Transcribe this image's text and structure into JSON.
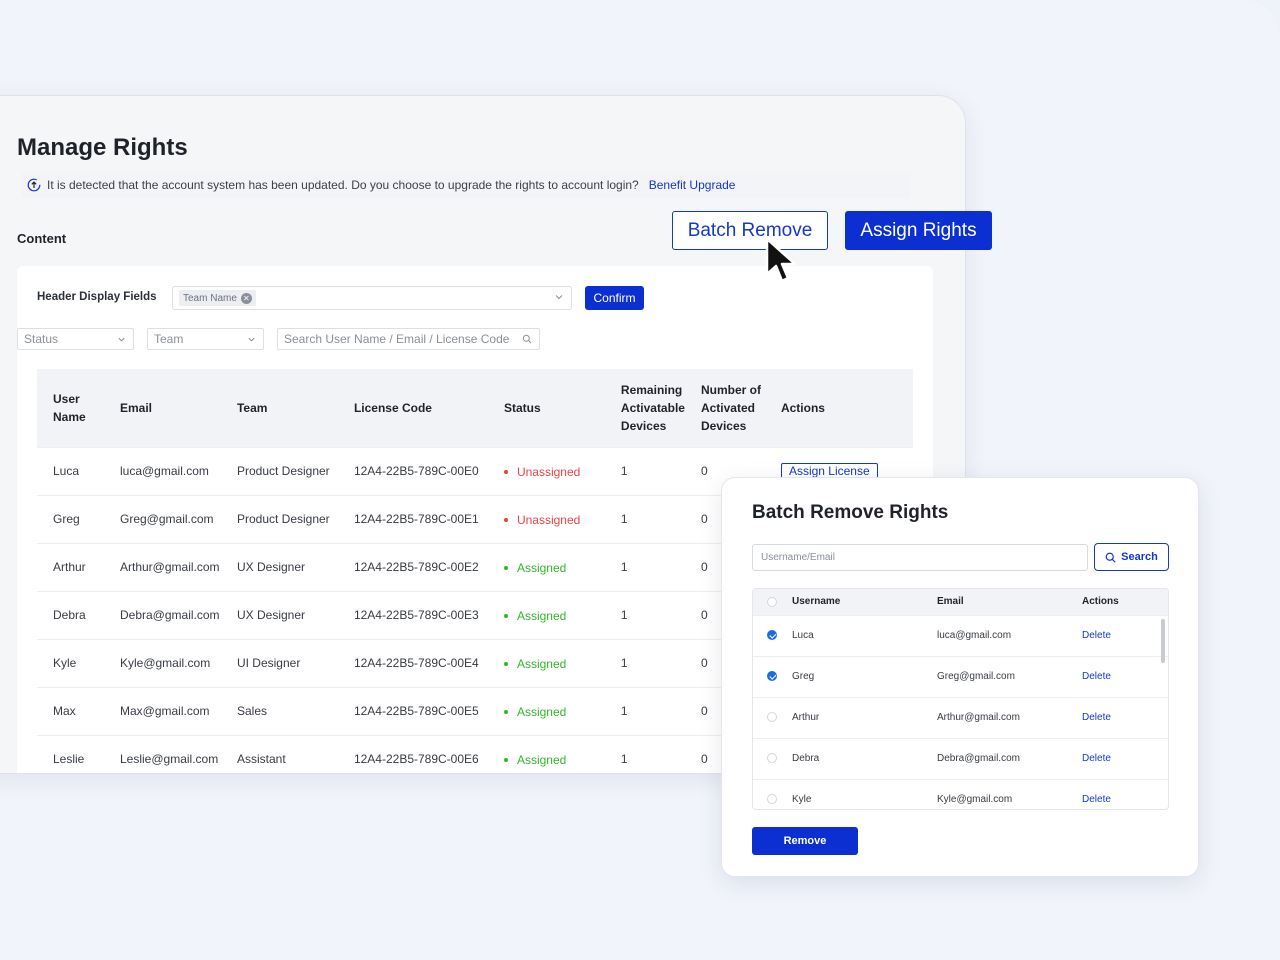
{
  "page": {
    "title": "Manage Rights",
    "notice_text": "It is detected that the account system has been updated. Do you choose to upgrade the rights to account login?",
    "notice_link": "Benefit Upgrade",
    "content_label": "Content"
  },
  "actions": {
    "batch_remove": "Batch Remove",
    "assign_rights": "Assign Rights"
  },
  "filters": {
    "header_display_label": "Header Display Fields",
    "selected_tag": "Team Name",
    "confirm": "Confirm",
    "status_placeholder": "Status",
    "team_placeholder": "Team",
    "search_placeholder": "Search User Name / Email / License Code"
  },
  "table": {
    "headers": {
      "user_name": [
        "User",
        "Name"
      ],
      "email": "Email",
      "team": "Team",
      "license_code": "License Code",
      "status": "Status",
      "remaining": [
        "Remaining",
        "Activatable",
        "Devices"
      ],
      "activated": [
        "Number of",
        "Activated",
        "Devices"
      ],
      "actions": "Actions"
    },
    "rows": [
      {
        "name": "Luca",
        "email": "luca@gmail.com",
        "team": "Product Designer",
        "license": "12A4-22B5-789C-00E0",
        "status": "Unassigned",
        "remaining": "1",
        "activated": "0",
        "action": "Assign License"
      },
      {
        "name": "Greg",
        "email": "Greg@gmail.com",
        "team": "Product Designer",
        "license": "12A4-22B5-789C-00E1",
        "status": "Unassigned",
        "remaining": "1",
        "activated": "0",
        "action": ""
      },
      {
        "name": "Arthur",
        "email": "Arthur@gmail.com",
        "team": "UX Designer",
        "license": "12A4-22B5-789C-00E2",
        "status": "Assigned",
        "remaining": "1",
        "activated": "0",
        "action": ""
      },
      {
        "name": "Debra",
        "email": "Debra@gmail.com",
        "team": "UX Designer",
        "license": "12A4-22B5-789C-00E3",
        "status": "Assigned",
        "remaining": "1",
        "activated": "0",
        "action": ""
      },
      {
        "name": "Kyle",
        "email": "Kyle@gmail.com",
        "team": "UI Designer",
        "license": "12A4-22B5-789C-00E4",
        "status": "Assigned",
        "remaining": "1",
        "activated": "0",
        "action": ""
      },
      {
        "name": "Max",
        "email": "Max@gmail.com",
        "team": "Sales",
        "license": "12A4-22B5-789C-00E5",
        "status": "Assigned",
        "remaining": "1",
        "activated": "0",
        "action": ""
      },
      {
        "name": "Leslie",
        "email": "Leslie@gmail.com",
        "team": "Assistant",
        "license": "12A4-22B5-789C-00E6",
        "status": "Assigned",
        "remaining": "1",
        "activated": "0",
        "action": ""
      }
    ]
  },
  "modal": {
    "title": "Batch Remove Rights",
    "search_placeholder": "Username/Email",
    "search_button": "Search",
    "headers": {
      "username": "Username",
      "email": "Email",
      "actions": "Actions"
    },
    "rows": [
      {
        "username": "Luca",
        "email": "luca@gmail.com",
        "action": "Delete",
        "checked": true
      },
      {
        "username": "Greg",
        "email": "Greg@gmail.com",
        "action": "Delete",
        "checked": true
      },
      {
        "username": "Arthur",
        "email": "Arthur@gmail.com",
        "action": "Delete",
        "checked": false
      },
      {
        "username": "Debra",
        "email": "Debra@gmail.com",
        "action": "Delete",
        "checked": false
      },
      {
        "username": "Kyle",
        "email": "Kyle@gmail.com",
        "action": "Delete",
        "checked": false
      }
    ],
    "remove_button": "Remove"
  },
  "colors": {
    "primary": "#0b2fd1",
    "link": "#1538c8",
    "unassigned": "#e54545",
    "assigned": "#34b52b",
    "checkbox_checked": "#1f6be5"
  },
  "icons": {
    "notice": "upgrade-info-icon",
    "tag_remove": "close-circle-icon",
    "dropdown": "chevron-down-icon",
    "search": "search-icon",
    "cursor": "mouse-pointer-icon"
  }
}
